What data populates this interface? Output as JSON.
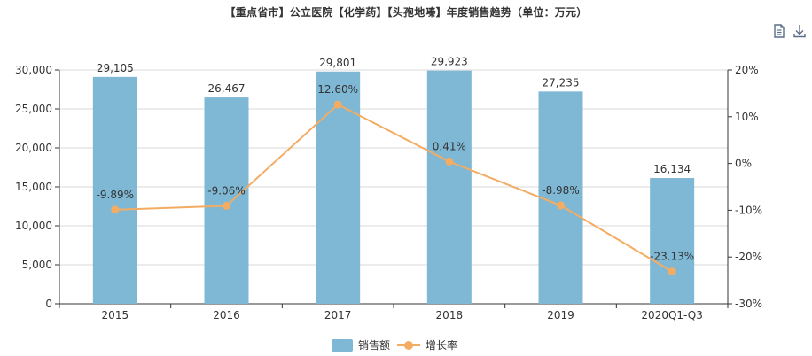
{
  "chart_data": {
    "type": "bar",
    "title": "【重点省市】公立医院【化学药】【头孢地嗪】年度销售趋势（单位：万元）",
    "categories": [
      "2015",
      "2016",
      "2017",
      "2018",
      "2019",
      "2020Q1-Q3"
    ],
    "series": [
      {
        "name": "销售额",
        "type": "bar",
        "axis": "left",
        "values": [
          29105,
          26467,
          29801,
          29923,
          27235,
          16134
        ],
        "labels": [
          "29,105",
          "26,467",
          "29,801",
          "29,923",
          "27,235",
          "16,134"
        ],
        "color": "#7fb8d5"
      },
      {
        "name": "增长率",
        "type": "line",
        "axis": "right",
        "values": [
          -9.89,
          -9.06,
          12.6,
          0.41,
          -8.98,
          -23.13
        ],
        "labels": [
          "-9.89%",
          "-9.06%",
          "12.60%",
          "0.41%",
          "-8.98%",
          "-23.13%"
        ],
        "color": "#f3ac62"
      }
    ],
    "y_left": {
      "ylim": [
        0,
        30000
      ],
      "ticks": [
        0,
        5000,
        10000,
        15000,
        20000,
        25000,
        30000
      ],
      "tick_labels": [
        "0",
        "5,000",
        "10,000",
        "15,000",
        "20,000",
        "25,000",
        "30,000"
      ]
    },
    "y_right": {
      "ylim": [
        -30,
        20
      ],
      "ticks": [
        -30,
        -20,
        -10,
        0,
        10,
        20
      ],
      "tick_labels": [
        "-30%",
        "-20%",
        "-10%",
        "0%",
        "10%",
        "20%"
      ]
    },
    "grid": true,
    "legend_position": "bottom-center"
  },
  "toolbar": {
    "icons": [
      "data-view-icon",
      "download-icon"
    ]
  }
}
